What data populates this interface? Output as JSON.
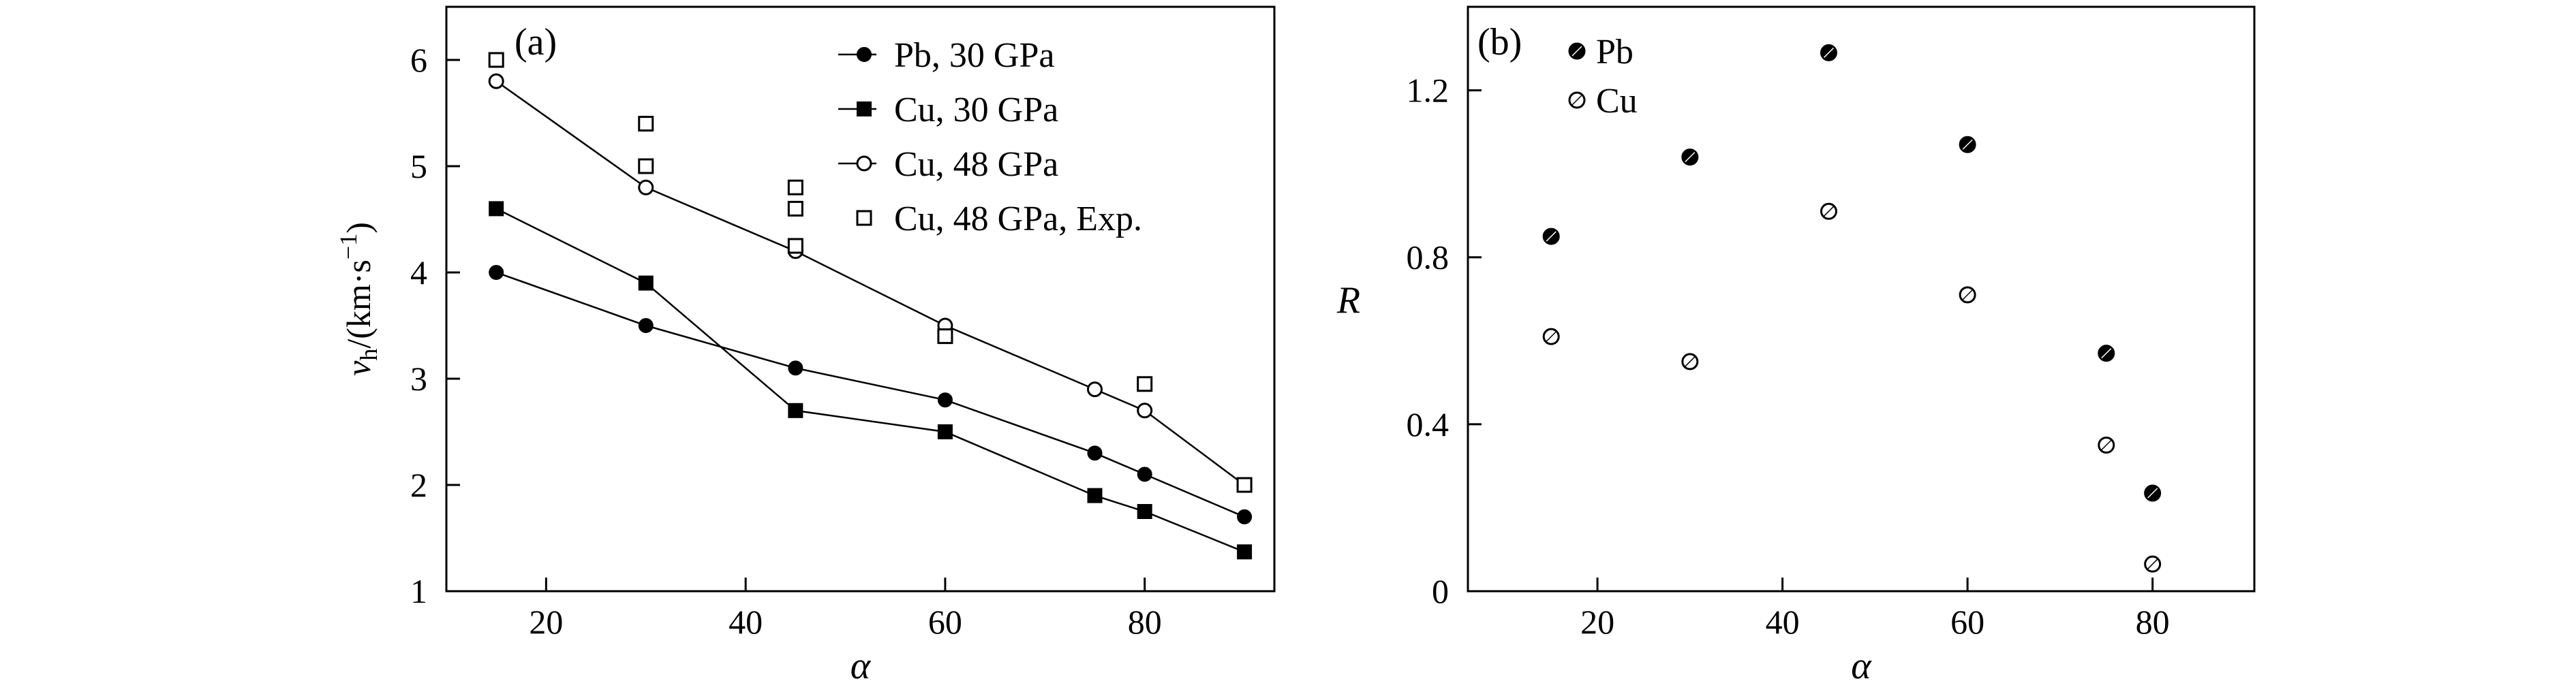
{
  "chart_data": [
    {
      "panel_label": "(a)",
      "type": "line",
      "xlabel": "α",
      "ylabel": {
        "main": "v",
        "sub": "h",
        "unit_prefix": "/(km·s",
        "sup": "−1",
        "unit_suffix": ")"
      },
      "xlim": [
        10,
        93
      ],
      "ylim": [
        1,
        6.5
      ],
      "xticks": [
        20,
        40,
        60,
        80
      ],
      "yticks": [
        1,
        2,
        3,
        4,
        5,
        6
      ],
      "legend_position": "top-right",
      "series": [
        {
          "name": "Pb, 30 GPa",
          "marker": "filled-circle",
          "line": true,
          "x": [
            15,
            30,
            45,
            60,
            75,
            80,
            90
          ],
          "y": [
            4.0,
            3.5,
            3.1,
            2.8,
            2.3,
            2.1,
            1.7
          ]
        },
        {
          "name": "Cu, 30 GPa",
          "marker": "filled-square",
          "line": true,
          "x": [
            15,
            30,
            45,
            60,
            75,
            80,
            90
          ],
          "y": [
            4.6,
            3.9,
            2.7,
            2.5,
            1.9,
            1.75,
            1.37
          ]
        },
        {
          "name": "Cu, 48 GPa",
          "marker": "open-circle",
          "line": true,
          "x": [
            15,
            30,
            45,
            60,
            75,
            80,
            90
          ],
          "y": [
            5.8,
            4.8,
            4.2,
            3.5,
            2.9,
            2.7,
            2.0
          ]
        },
        {
          "name": "Cu, 48 GPa, Exp.",
          "marker": "open-square",
          "line": false,
          "x": [
            15,
            30,
            30,
            45,
            45,
            45,
            60,
            80,
            90
          ],
          "y": [
            6.0,
            5.4,
            5.0,
            4.8,
            4.6,
            4.25,
            3.4,
            2.95,
            2.0
          ]
        }
      ]
    },
    {
      "panel_label": "(b)",
      "type": "scatter",
      "xlabel": "α",
      "ylabel": "R",
      "xlim": [
        6,
        91
      ],
      "ylim": [
        0,
        1.4
      ],
      "xticks": [
        20,
        40,
        60,
        80
      ],
      "yticks": [
        0,
        0.4,
        0.8,
        1.2
      ],
      "ytick_labels": [
        "0",
        "0.4",
        "0.8",
        "1.2"
      ],
      "legend_position": "top-left",
      "series": [
        {
          "name": "Pb",
          "marker": "filled-diamond-circle",
          "x": [
            15,
            30,
            45,
            60,
            75,
            80
          ],
          "y": [
            0.85,
            1.04,
            1.29,
            1.07,
            0.57,
            0.235
          ]
        },
        {
          "name": "Cu",
          "marker": "open-diamond-circle",
          "x": [
            15,
            30,
            45,
            60,
            75,
            80
          ],
          "y": [
            0.61,
            0.55,
            0.91,
            0.71,
            0.35,
            0.065
          ]
        }
      ]
    }
  ]
}
